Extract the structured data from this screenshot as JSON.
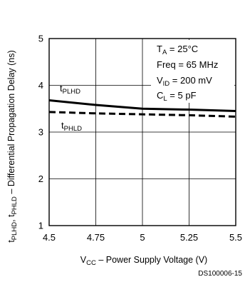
{
  "chart_data": {
    "type": "line",
    "title": "",
    "xlabel": {
      "main": "V",
      "sub": "CC",
      "rest": " – Power Supply Voltage (V)"
    },
    "ylabel": {
      "parts": [
        {
          "t": "t",
          "sub": false
        },
        {
          "t": "PLHD",
          "sub": true
        },
        {
          "t": ", t",
          "sub": false
        },
        {
          "t": "PHLD",
          "sub": true
        },
        {
          "t": " – Differential Propagation Delay (ns)",
          "sub": false
        }
      ]
    },
    "xlim": [
      4.5,
      5.5
    ],
    "ylim": [
      1,
      5
    ],
    "x_ticks": [
      4.5,
      4.75,
      5,
      5.25,
      5.5
    ],
    "x_tick_labels": [
      "4.5",
      "4.75",
      "5",
      "5.25",
      "5.5"
    ],
    "y_ticks": [
      1,
      2,
      3,
      4,
      5
    ],
    "y_tick_labels": [
      "1",
      "2",
      "3",
      "4",
      "5"
    ],
    "grid": true,
    "series": [
      {
        "name": "tPLHD",
        "label_main": "t",
        "label_sub": "PLHD",
        "style": "solid",
        "x": [
          4.5,
          4.75,
          5.0,
          5.25,
          5.5
        ],
        "y": [
          3.68,
          3.58,
          3.5,
          3.48,
          3.45
        ]
      },
      {
        "name": "tPHLD",
        "label_main": "t",
        "label_sub": "PHLD",
        "style": "dashed",
        "x": [
          4.5,
          4.75,
          5.0,
          5.25,
          5.5
        ],
        "y": [
          3.43,
          3.4,
          3.38,
          3.36,
          3.33
        ]
      }
    ],
    "conditions": [
      {
        "main": "T",
        "sub": "A",
        "rest": " = 25°C"
      },
      {
        "main": "Freq = 65 MHz",
        "sub": "",
        "rest": ""
      },
      {
        "main": "V",
        "sub": "ID",
        "rest": " = 200 mV"
      },
      {
        "main": "C",
        "sub": "L",
        "rest": " = 5 pF"
      }
    ]
  },
  "footer_code": "DS100006-15"
}
